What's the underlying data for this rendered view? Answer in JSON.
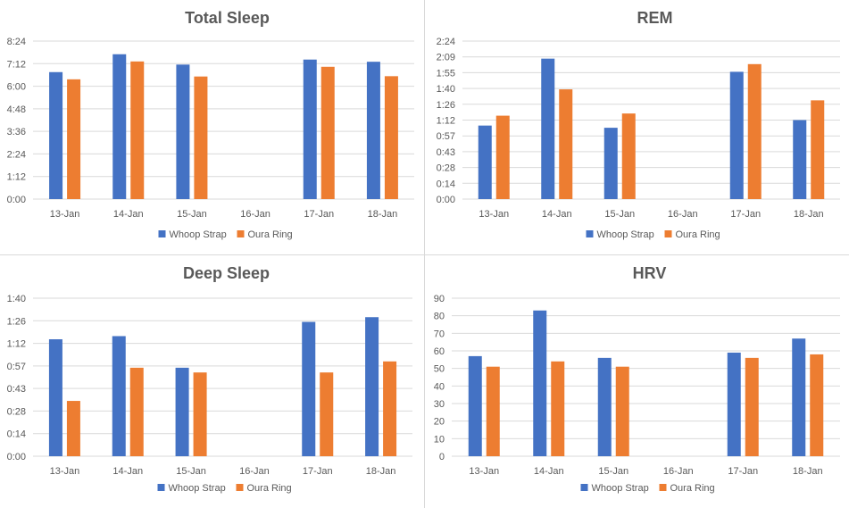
{
  "colors": {
    "whoop": "#4472C4",
    "oura": "#ED7D31",
    "grid": "#D9D9D9",
    "text": "#595959"
  },
  "chart_data": [
    {
      "type": "bar",
      "title": "Total Sleep",
      "categories": [
        "13-Jan",
        "14-Jan",
        "15-Jan",
        "16-Jan",
        "17-Jan",
        "18-Jan"
      ],
      "yticks": [
        "0:00",
        "1:12",
        "2:24",
        "3:36",
        "4:48",
        "6:00",
        "7:12",
        "8:24"
      ],
      "ylim": [
        0,
        504
      ],
      "yunit": "minutes",
      "series": [
        {
          "name": "Whoop Strap",
          "values": [
            405,
            462,
            429,
            null,
            445,
            438
          ]
        },
        {
          "name": "Oura Ring",
          "values": [
            382,
            439,
            391,
            null,
            422,
            392
          ]
        }
      ],
      "legend": "bottom"
    },
    {
      "type": "bar",
      "title": "REM",
      "categories": [
        "13-Jan",
        "14-Jan",
        "15-Jan",
        "16-Jan",
        "17-Jan",
        "18-Jan"
      ],
      "yticks": [
        "0:00",
        "0:14",
        "0:28",
        "0:43",
        "0:57",
        "1:12",
        "1:26",
        "1:40",
        "1:55",
        "2:09",
        "2:24"
      ],
      "ylim": [
        0,
        144
      ],
      "yunit": "minutes",
      "series": [
        {
          "name": "Whoop Strap",
          "values": [
            67,
            128,
            65,
            null,
            116,
            72
          ]
        },
        {
          "name": "Oura Ring",
          "values": [
            76,
            100,
            78,
            null,
            123,
            90
          ]
        }
      ],
      "legend": "bottom"
    },
    {
      "type": "bar",
      "title": "Deep Sleep",
      "categories": [
        "13-Jan",
        "14-Jan",
        "15-Jan",
        "16-Jan",
        "17-Jan",
        "18-Jan"
      ],
      "yticks": [
        "0:00",
        "0:14",
        "0:28",
        "0:43",
        "0:57",
        "1:12",
        "1:26",
        "1:40"
      ],
      "ylim": [
        0,
        100
      ],
      "yunit": "minutes",
      "series": [
        {
          "name": "Whoop Strap",
          "values": [
            74,
            76,
            56,
            null,
            85,
            88
          ]
        },
        {
          "name": "Oura Ring",
          "values": [
            35,
            56,
            53,
            null,
            53,
            60
          ]
        }
      ],
      "legend": "bottom"
    },
    {
      "type": "bar",
      "title": "HRV",
      "categories": [
        "13-Jan",
        "14-Jan",
        "15-Jan",
        "16-Jan",
        "17-Jan",
        "18-Jan"
      ],
      "yticks": [
        "0",
        "10",
        "20",
        "30",
        "40",
        "50",
        "60",
        "70",
        "80",
        "90"
      ],
      "ylim": [
        0,
        90
      ],
      "series": [
        {
          "name": "Whoop Strap",
          "values": [
            57,
            83,
            56,
            null,
            59,
            67
          ]
        },
        {
          "name": "Oura Ring",
          "values": [
            51,
            54,
            51,
            null,
            56,
            58
          ]
        }
      ],
      "legend": "bottom"
    }
  ]
}
